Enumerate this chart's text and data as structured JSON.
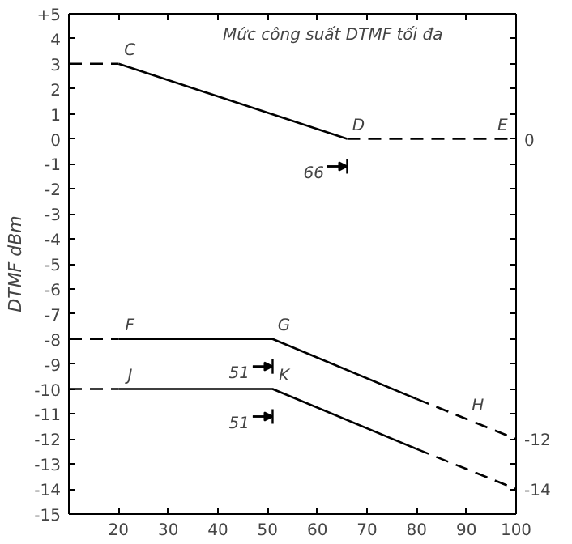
{
  "chart_data": {
    "type": "line",
    "ylabel": "DTMF dBm",
    "xlim": [
      10,
      100
    ],
    "xticks": [
      20,
      30,
      40,
      50,
      60,
      70,
      80,
      90,
      100
    ],
    "ylim": [
      -15,
      5
    ],
    "yticks": [
      {
        "value": 5,
        "label": "+5"
      },
      4,
      3,
      2,
      1,
      0,
      -1,
      -2,
      -3,
      -4,
      -5,
      -6,
      -7,
      -8,
      -9,
      -10,
      -11,
      -12,
      -13,
      -14,
      -15
    ],
    "y2lim": [
      -15,
      5
    ],
    "y2ticks": [
      {
        "value": 5,
        "label": null
      },
      {
        "value": 4,
        "label": null
      },
      {
        "value": 3,
        "label": null
      },
      {
        "value": 2,
        "label": null
      },
      {
        "value": 1,
        "label": null
      },
      0,
      {
        "value": -1,
        "label": null
      },
      {
        "value": -2,
        "label": null
      },
      {
        "value": -3,
        "label": null
      },
      {
        "value": -4,
        "label": null
      },
      {
        "value": -5,
        "label": null
      },
      {
        "value": -6,
        "label": null
      },
      {
        "value": -7,
        "label": null
      },
      {
        "value": -8,
        "label": null
      },
      {
        "value": -9,
        "label": null
      },
      {
        "value": -10,
        "label": null
      },
      {
        "value": -11,
        "label": null
      },
      -12,
      {
        "value": -13,
        "label": null
      },
      -14,
      {
        "value": -15,
        "label": null
      }
    ],
    "grid": false,
    "marker": "none",
    "series": [
      {
        "color": "#000000",
        "line_style": "dashed",
        "x": [
          10,
          20
        ],
        "values": [
          3,
          3
        ]
      },
      {
        "color": "#000000",
        "line_style": "solid",
        "x": [
          20,
          66
        ],
        "values": [
          3,
          0
        ]
      },
      {
        "color": "#000000",
        "line_style": "dashed",
        "x": [
          66,
          100
        ],
        "values": [
          0,
          0
        ]
      },
      {
        "color": "#000000",
        "line_style": "dashed",
        "x": [
          10,
          20
        ],
        "values": [
          -8,
          -8
        ]
      },
      {
        "color": "#000000",
        "line_style": "solid",
        "x": [
          20,
          51,
          80
        ],
        "values": [
          -8,
          -8,
          -10.4
        ]
      },
      {
        "color": "#000000",
        "line_style": "dashed",
        "x": [
          80,
          100
        ],
        "values": [
          -10.4,
          -12
        ]
      },
      {
        "color": "#000000",
        "line_style": "dashed",
        "x": [
          10,
          20
        ],
        "values": [
          -10,
          -10
        ]
      },
      {
        "color": "#000000",
        "line_style": "solid",
        "x": [
          20,
          51,
          80
        ],
        "values": [
          -10,
          -10,
          -12.4
        ]
      },
      {
        "color": "#000000",
        "line_style": "dashed",
        "x": [
          80,
          100
        ],
        "values": [
          -12.4,
          -14
        ]
      }
    ],
    "annotations": [
      "Mức công suất DTMF tối đa",
      {
        "text": "C",
        "x": 20,
        "y": 3
      },
      {
        "text": "D",
        "x": 66,
        "y": 0
      },
      {
        "text": "E",
        "x": 95,
        "y": 0
      },
      {
        "text": "F",
        "x": 20,
        "y": -8
      },
      {
        "text": "G",
        "x": 51,
        "y": -8
      },
      {
        "text": "H",
        "x": 90,
        "y": -11.2
      },
      {
        "text": "J",
        "x": 20,
        "y": -10
      },
      {
        "text": "K",
        "x": 51,
        "y": -10
      },
      {
        "text": "66",
        "x": 66,
        "y": 0
      },
      {
        "text": "51",
        "x": 51,
        "y": -8
      },
      {
        "text": "51",
        "x": 51,
        "y": -10
      }
    ]
  }
}
